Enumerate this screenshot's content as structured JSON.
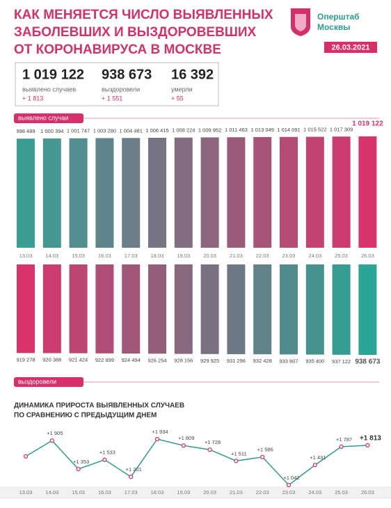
{
  "header": {
    "title_lines": [
      "КАК МЕНЯЕТСЯ ЧИСЛО ВЫЯВЛЕННЫХ",
      "ЗАБОЛЕВШИХ И ВЫЗДОРОВЕВШИХ",
      "ОТ КОРОНАВИРУСА В МОСКВЕ"
    ],
    "logo_lines": [
      "Оперштаб",
      "Москвы"
    ],
    "date": "26.03.2021"
  },
  "stats": [
    {
      "value": "1 019 122",
      "label": "выявлено случаев",
      "change": "+ 1 813"
    },
    {
      "value": "938 673",
      "label": "выздоровели",
      "change": "+ 1 551"
    },
    {
      "value": "16 392",
      "label": "умерли",
      "change": "+ 55"
    }
  ],
  "chart_data": [
    {
      "type": "bar",
      "label": "выявлено случаи",
      "categories": [
        "13.03",
        "14.03",
        "15.03",
        "16.03",
        "17.03",
        "18.03",
        "19.03",
        "20.03",
        "21.03",
        "22.03",
        "23.03",
        "24.03",
        "25.03",
        "26.03"
      ],
      "values": [
        998489,
        1000394,
        1001747,
        1003280,
        1004481,
        1006415,
        1008224,
        1009952,
        1011463,
        1013049,
        1014091,
        1015522,
        1017309,
        1019122
      ],
      "value_labels": [
        "998 489",
        "1 000 394",
        "1 001 747",
        "1 003 280",
        "1 004 481",
        "1 006 415",
        "1 008 224",
        "1 009 952",
        "1 011 463",
        "1 013 049",
        "1 014 091",
        "1 015 522",
        "1 017 309",
        "1 019 122"
      ],
      "gradient": [
        "#3a9e95",
        "#d8336b"
      ],
      "bars_from": "bottom"
    },
    {
      "type": "bar",
      "label": "выздоровели",
      "values": [
        919278,
        920388,
        921424,
        922899,
        924494,
        926254,
        928156,
        929925,
        931296,
        932428,
        933807,
        935400,
        937122,
        938673
      ],
      "value_labels": [
        "919 278",
        "920 388",
        "921 424",
        "922 899",
        "924 494",
        "926 254",
        "928 156",
        "929 925",
        "931 296",
        "932 428",
        "933 807",
        "935 400",
        "937 122",
        "938 673"
      ],
      "gradient": [
        "#d8336b",
        "#2aa596"
      ],
      "bars_from": "top"
    },
    {
      "type": "line",
      "title_lines": [
        "ДИНАМИКА ПРИРОСТА ВЫЯВЛЕННЫХ СЛУЧАЕВ",
        "ПО СРАВНЕНИЮ С ПРЕДЫДУЩИМ ДНЕМ"
      ],
      "categories": [
        "13.03",
        "14.03",
        "15.03",
        "16.03",
        "17.03",
        "18.03",
        "19.03",
        "20.03",
        "21.03",
        "22.03",
        "23.03",
        "24.03",
        "25.03",
        "26.03"
      ],
      "values": [
        1600,
        1905,
        1353,
        1533,
        1201,
        1934,
        1809,
        1728,
        1511,
        1586,
        1042,
        1431,
        1787,
        1813
      ],
      "value_labels": [
        null,
        "+1 905",
        "+1 353",
        "+1 533",
        "+1 201",
        "+1 934",
        "+1 809",
        "+1 728",
        "+1 511",
        "+1 586",
        "+1 042",
        "+1 431",
        "+1 787",
        "+1 813"
      ],
      "color": "#2a9d8f",
      "marker_color": "#d8336b"
    }
  ]
}
